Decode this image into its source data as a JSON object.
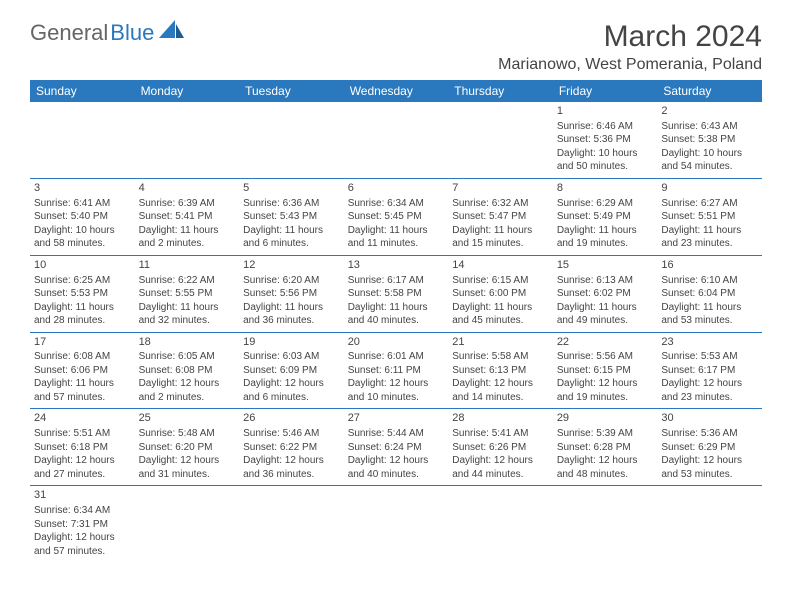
{
  "logo": {
    "text1": "General",
    "text2": "Blue"
  },
  "title": "March 2024",
  "location": "Marianowo, West Pomerania, Poland",
  "colors": {
    "header_bg": "#2a78bd",
    "header_text": "#ffffff",
    "border": "#2a78bd",
    "text": "#444444"
  },
  "weekdays": [
    "Sunday",
    "Monday",
    "Tuesday",
    "Wednesday",
    "Thursday",
    "Friday",
    "Saturday"
  ],
  "weeks": [
    [
      null,
      null,
      null,
      null,
      null,
      {
        "d": "1",
        "sr": "Sunrise: 6:46 AM",
        "ss": "Sunset: 5:36 PM",
        "dl1": "Daylight: 10 hours",
        "dl2": "and 50 minutes."
      },
      {
        "d": "2",
        "sr": "Sunrise: 6:43 AM",
        "ss": "Sunset: 5:38 PM",
        "dl1": "Daylight: 10 hours",
        "dl2": "and 54 minutes."
      }
    ],
    [
      {
        "d": "3",
        "sr": "Sunrise: 6:41 AM",
        "ss": "Sunset: 5:40 PM",
        "dl1": "Daylight: 10 hours",
        "dl2": "and 58 minutes."
      },
      {
        "d": "4",
        "sr": "Sunrise: 6:39 AM",
        "ss": "Sunset: 5:41 PM",
        "dl1": "Daylight: 11 hours",
        "dl2": "and 2 minutes."
      },
      {
        "d": "5",
        "sr": "Sunrise: 6:36 AM",
        "ss": "Sunset: 5:43 PM",
        "dl1": "Daylight: 11 hours",
        "dl2": "and 6 minutes."
      },
      {
        "d": "6",
        "sr": "Sunrise: 6:34 AM",
        "ss": "Sunset: 5:45 PM",
        "dl1": "Daylight: 11 hours",
        "dl2": "and 11 minutes."
      },
      {
        "d": "7",
        "sr": "Sunrise: 6:32 AM",
        "ss": "Sunset: 5:47 PM",
        "dl1": "Daylight: 11 hours",
        "dl2": "and 15 minutes."
      },
      {
        "d": "8",
        "sr": "Sunrise: 6:29 AM",
        "ss": "Sunset: 5:49 PM",
        "dl1": "Daylight: 11 hours",
        "dl2": "and 19 minutes."
      },
      {
        "d": "9",
        "sr": "Sunrise: 6:27 AM",
        "ss": "Sunset: 5:51 PM",
        "dl1": "Daylight: 11 hours",
        "dl2": "and 23 minutes."
      }
    ],
    [
      {
        "d": "10",
        "sr": "Sunrise: 6:25 AM",
        "ss": "Sunset: 5:53 PM",
        "dl1": "Daylight: 11 hours",
        "dl2": "and 28 minutes."
      },
      {
        "d": "11",
        "sr": "Sunrise: 6:22 AM",
        "ss": "Sunset: 5:55 PM",
        "dl1": "Daylight: 11 hours",
        "dl2": "and 32 minutes."
      },
      {
        "d": "12",
        "sr": "Sunrise: 6:20 AM",
        "ss": "Sunset: 5:56 PM",
        "dl1": "Daylight: 11 hours",
        "dl2": "and 36 minutes."
      },
      {
        "d": "13",
        "sr": "Sunrise: 6:17 AM",
        "ss": "Sunset: 5:58 PM",
        "dl1": "Daylight: 11 hours",
        "dl2": "and 40 minutes."
      },
      {
        "d": "14",
        "sr": "Sunrise: 6:15 AM",
        "ss": "Sunset: 6:00 PM",
        "dl1": "Daylight: 11 hours",
        "dl2": "and 45 minutes."
      },
      {
        "d": "15",
        "sr": "Sunrise: 6:13 AM",
        "ss": "Sunset: 6:02 PM",
        "dl1": "Daylight: 11 hours",
        "dl2": "and 49 minutes."
      },
      {
        "d": "16",
        "sr": "Sunrise: 6:10 AM",
        "ss": "Sunset: 6:04 PM",
        "dl1": "Daylight: 11 hours",
        "dl2": "and 53 minutes."
      }
    ],
    [
      {
        "d": "17",
        "sr": "Sunrise: 6:08 AM",
        "ss": "Sunset: 6:06 PM",
        "dl1": "Daylight: 11 hours",
        "dl2": "and 57 minutes."
      },
      {
        "d": "18",
        "sr": "Sunrise: 6:05 AM",
        "ss": "Sunset: 6:08 PM",
        "dl1": "Daylight: 12 hours",
        "dl2": "and 2 minutes."
      },
      {
        "d": "19",
        "sr": "Sunrise: 6:03 AM",
        "ss": "Sunset: 6:09 PM",
        "dl1": "Daylight: 12 hours",
        "dl2": "and 6 minutes."
      },
      {
        "d": "20",
        "sr": "Sunrise: 6:01 AM",
        "ss": "Sunset: 6:11 PM",
        "dl1": "Daylight: 12 hours",
        "dl2": "and 10 minutes."
      },
      {
        "d": "21",
        "sr": "Sunrise: 5:58 AM",
        "ss": "Sunset: 6:13 PM",
        "dl1": "Daylight: 12 hours",
        "dl2": "and 14 minutes."
      },
      {
        "d": "22",
        "sr": "Sunrise: 5:56 AM",
        "ss": "Sunset: 6:15 PM",
        "dl1": "Daylight: 12 hours",
        "dl2": "and 19 minutes."
      },
      {
        "d": "23",
        "sr": "Sunrise: 5:53 AM",
        "ss": "Sunset: 6:17 PM",
        "dl1": "Daylight: 12 hours",
        "dl2": "and 23 minutes."
      }
    ],
    [
      {
        "d": "24",
        "sr": "Sunrise: 5:51 AM",
        "ss": "Sunset: 6:18 PM",
        "dl1": "Daylight: 12 hours",
        "dl2": "and 27 minutes."
      },
      {
        "d": "25",
        "sr": "Sunrise: 5:48 AM",
        "ss": "Sunset: 6:20 PM",
        "dl1": "Daylight: 12 hours",
        "dl2": "and 31 minutes."
      },
      {
        "d": "26",
        "sr": "Sunrise: 5:46 AM",
        "ss": "Sunset: 6:22 PM",
        "dl1": "Daylight: 12 hours",
        "dl2": "and 36 minutes."
      },
      {
        "d": "27",
        "sr": "Sunrise: 5:44 AM",
        "ss": "Sunset: 6:24 PM",
        "dl1": "Daylight: 12 hours",
        "dl2": "and 40 minutes."
      },
      {
        "d": "28",
        "sr": "Sunrise: 5:41 AM",
        "ss": "Sunset: 6:26 PM",
        "dl1": "Daylight: 12 hours",
        "dl2": "and 44 minutes."
      },
      {
        "d": "29",
        "sr": "Sunrise: 5:39 AM",
        "ss": "Sunset: 6:28 PM",
        "dl1": "Daylight: 12 hours",
        "dl2": "and 48 minutes."
      },
      {
        "d": "30",
        "sr": "Sunrise: 5:36 AM",
        "ss": "Sunset: 6:29 PM",
        "dl1": "Daylight: 12 hours",
        "dl2": "and 53 minutes."
      }
    ],
    [
      {
        "d": "31",
        "sr": "Sunrise: 6:34 AM",
        "ss": "Sunset: 7:31 PM",
        "dl1": "Daylight: 12 hours",
        "dl2": "and 57 minutes."
      },
      null,
      null,
      null,
      null,
      null,
      null
    ]
  ]
}
